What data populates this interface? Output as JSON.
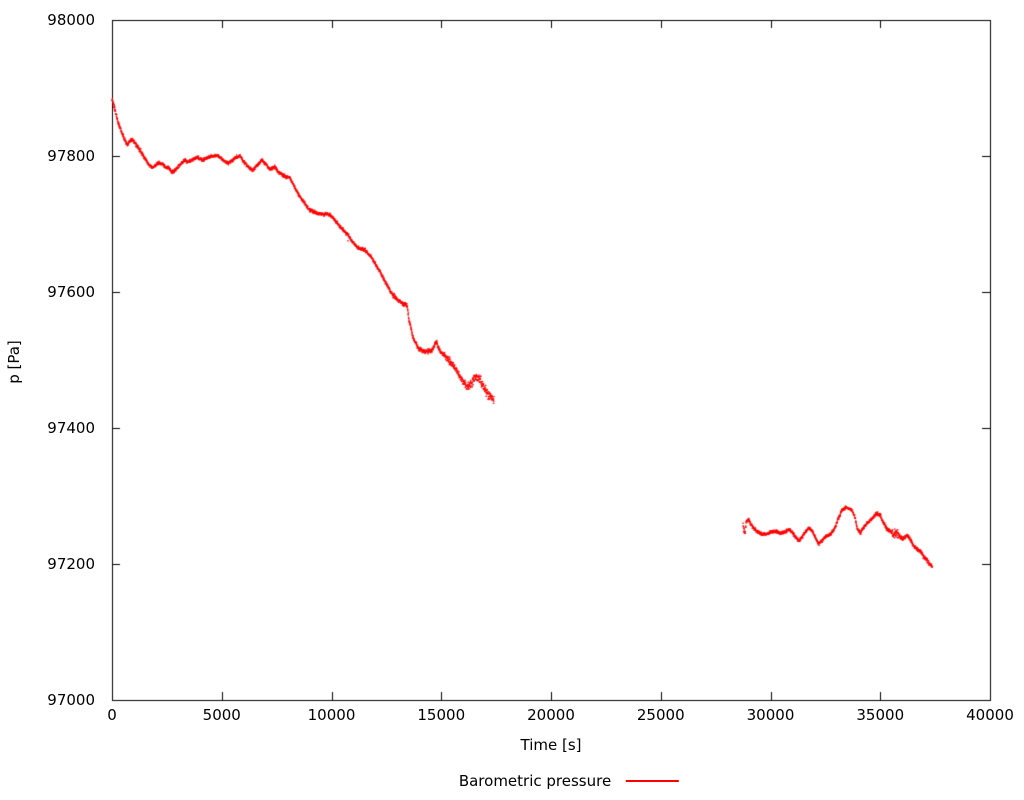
{
  "figure": {
    "background": "#ffffff",
    "y_axis_title": "p [Pa]",
    "x_axis_title": "Time [s]",
    "legend": {
      "label": "Barometric pressure",
      "line_color": "#ff0000"
    }
  },
  "chart_data": {
    "type": "scatter",
    "title": "",
    "xlabel": "Time [s]",
    "ylabel": "p [Pa]",
    "xlim": [
      0,
      40000
    ],
    "ylim": [
      97000,
      98000
    ],
    "grid": false,
    "legend_position": "bottom-center",
    "point_color": "#ff0000",
    "axis_color": "#000000",
    "tick_length": 8,
    "noise_seed": 42,
    "x_ticks": {
      "values": [
        0,
        5000,
        10000,
        15000,
        20000,
        25000,
        30000,
        35000,
        40000
      ],
      "labels": [
        "0",
        "5000",
        "10000",
        "15000",
        "20000",
        "25000",
        "30000",
        "35000",
        "40000"
      ]
    },
    "y_ticks": {
      "values": [
        97000,
        97200,
        97400,
        97600,
        97800,
        98000
      ],
      "labels": [
        "97000",
        "97200",
        "97400",
        "97600",
        "97800",
        "98000"
      ]
    },
    "series": [
      {
        "name": "Barometric pressure",
        "segments": [
          {
            "points": [
              [
                0,
                97884
              ],
              [
                120,
                97870
              ],
              [
                250,
                97852
              ],
              [
                380,
                97840
              ],
              [
                480,
                97832
              ],
              [
                600,
                97822
              ],
              [
                700,
                97816
              ],
              [
                820,
                97822
              ],
              [
                950,
                97824
              ],
              [
                1100,
                97816
              ],
              [
                1250,
                97810
              ],
              [
                1400,
                97802
              ],
              [
                1550,
                97794
              ],
              [
                1700,
                97786
              ],
              [
                1850,
                97783
              ],
              [
                2000,
                97787
              ],
              [
                2150,
                97790
              ],
              [
                2300,
                97788
              ],
              [
                2450,
                97784
              ],
              [
                2600,
                97782
              ],
              [
                2733,
                97776
              ],
              [
                2900,
                97780
              ],
              [
                3100,
                97787
              ],
              [
                3325,
                97794
              ],
              [
                3500,
                97791
              ],
              [
                3700,
                97795
              ],
              [
                3900,
                97798
              ],
              [
                4100,
                97794
              ],
              [
                4300,
                97797
              ],
              [
                4550,
                97800
              ],
              [
                4830,
                97801
              ],
              [
                5050,
                97794
              ],
              [
                5285,
                97789
              ],
              [
                5500,
                97794
              ],
              [
                5650,
                97798
              ],
              [
                5831,
                97800
              ],
              [
                6000,
                97792
              ],
              [
                6200,
                97784
              ],
              [
                6423,
                97779
              ],
              [
                6650,
                97788
              ],
              [
                6833,
                97794
              ],
              [
                7000,
                97788
              ],
              [
                7200,
                97780
              ],
              [
                7400,
                97784
              ],
              [
                7600,
                97776
              ],
              [
                7880,
                97770
              ],
              [
                8109,
                97768
              ],
              [
                8350,
                97752
              ],
              [
                8565,
                97740
              ],
              [
                8800,
                97729
              ],
              [
                9020,
                97720
              ],
              [
                9200,
                97718
              ],
              [
                9385,
                97716
              ],
              [
                9600,
                97713
              ],
              [
                9795,
                97716
              ],
              [
                10068,
                97709
              ],
              [
                10387,
                97696
              ],
              [
                10752,
                97684
              ],
              [
                10950,
                97674
              ],
              [
                11162,
                97666
              ],
              [
                11350,
                97663
              ],
              [
                11526,
                97662
              ],
              [
                11700,
                97655
              ],
              [
                11845,
                97650
              ],
              [
                12030,
                97640
              ],
              [
                12210,
                97630
              ],
              [
                12400,
                97618
              ],
              [
                12574,
                97608
              ],
              [
                12730,
                97598
              ],
              [
                12893,
                97592
              ],
              [
                13050,
                97586
              ],
              [
                13212,
                97584
              ],
              [
                13440,
                97581
              ],
              [
                13531,
                97559
              ],
              [
                13713,
                97533
              ],
              [
                13941,
                97518
              ],
              [
                14260,
                97512
              ],
              [
                14579,
                97515
              ],
              [
                14761,
                97527
              ],
              [
                14943,
                97512
              ],
              [
                15262,
                97503
              ],
              [
                15626,
                97489
              ],
              [
                15991,
                97468
              ],
              [
                16219,
                97459
              ],
              [
                16492,
                97471
              ],
              [
                16720,
                97474
              ],
              [
                16948,
                97459
              ],
              [
                17176,
                97447
              ],
              [
                17403,
                97441
              ]
            ],
            "noise_profile": [
              [
                0,
                5
              ],
              [
                1500,
                4
              ],
              [
                12800,
                6
              ],
              [
                13300,
                5
              ],
              [
                14500,
                6
              ],
              [
                15200,
                8
              ],
              [
                16000,
                10
              ],
              [
                16700,
                11
              ]
            ]
          },
          {
            "points": [
              [
                28750,
                97256
              ],
              [
                28820,
                97246
              ],
              [
                28900,
                97262
              ],
              [
                29000,
                97266
              ],
              [
                29120,
                97258
              ],
              [
                29250,
                97252
              ],
              [
                29450,
                97247
              ],
              [
                29650,
                97243
              ],
              [
                29850,
                97245
              ],
              [
                30050,
                97247
              ],
              [
                30250,
                97248
              ],
              [
                30450,
                97245
              ],
              [
                30650,
                97247
              ],
              [
                30850,
                97251
              ],
              [
                31000,
                97246
              ],
              [
                31150,
                97239
              ],
              [
                31300,
                97234
              ],
              [
                31450,
                97240
              ],
              [
                31600,
                97248
              ],
              [
                31750,
                97253
              ],
              [
                31900,
                97249
              ],
              [
                32050,
                97238
              ],
              [
                32200,
                97230
              ],
              [
                32350,
                97234
              ],
              [
                32500,
                97240
              ],
              [
                32650,
                97242
              ],
              [
                32800,
                97246
              ],
              [
                32950,
                97254
              ],
              [
                33100,
                97268
              ],
              [
                33250,
                97278
              ],
              [
                33400,
                97283
              ],
              [
                33550,
                97282
              ],
              [
                33700,
                97280
              ],
              [
                33850,
                97268
              ],
              [
                33950,
                97252
              ],
              [
                34100,
                97246
              ],
              [
                34250,
                97254
              ],
              [
                34400,
                97260
              ],
              [
                34550,
                97264
              ],
              [
                34700,
                97270
              ],
              [
                34850,
                97274
              ],
              [
                35000,
                97272
              ],
              [
                35150,
                97260
              ],
              [
                35300,
                97252
              ],
              [
                35450,
                97248
              ],
              [
                35600,
                97244
              ],
              [
                35750,
                97246
              ],
              [
                35900,
                97240
              ],
              [
                36050,
                97236
              ],
              [
                36200,
                97242
              ],
              [
                36350,
                97238
              ],
              [
                36500,
                97228
              ],
              [
                36650,
                97222
              ],
              [
                36800,
                97220
              ],
              [
                36950,
                97212
              ],
              [
                37100,
                97206
              ],
              [
                37250,
                97200
              ],
              [
                37380,
                97196
              ]
            ],
            "noise_profile": [
              [
                28750,
                10
              ],
              [
                28950,
                4
              ],
              [
                35550,
                12
              ],
              [
                35850,
                5
              ]
            ]
          }
        ]
      }
    ]
  }
}
